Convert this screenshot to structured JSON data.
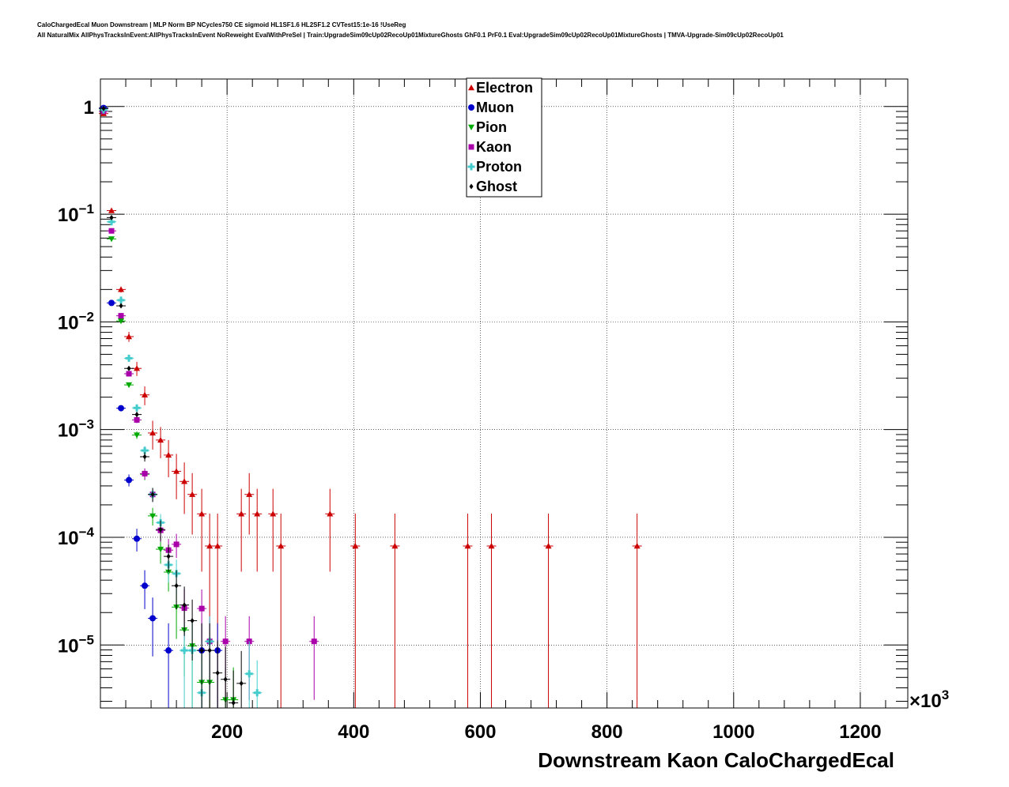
{
  "header": {
    "line1": "CaloChargedEcal Muon Downstream | MLP Norm BP NCycles750 CE sigmoid HL1SF1.6 HL2SF1.2 CVTest15:1e-16 !UseReg",
    "line2": "All NaturalMix AllPhysTracksInEvent:AllPhysTracksInEvent NoReweight EvalWithPreSel | Train:UpgradeSim09cUp02RecoUp01MixtureGhosts GhF0.1 PrF0.1 Eval:UpgradeSim09cUp02RecoUp01MixtureGhosts | TMVA-Upgrade-Sim09cUp02RecoUp01"
  },
  "chart_data": {
    "type": "scatter",
    "title": "",
    "xlabel": "Downstream Kaon CaloChargedEcal",
    "x_multiplier_label": "×10",
    "x_multiplier_exp": "3",
    "ylabel": "",
    "xlim": [
      0,
      1275
    ],
    "ylim": [
      2.6e-06,
      1.8
    ],
    "yscale": "log",
    "grid": true,
    "legend_position": "top-center",
    "x_ticks": [
      {
        "v": 200,
        "label": "200"
      },
      {
        "v": 400,
        "label": "400"
      },
      {
        "v": 600,
        "label": "600"
      },
      {
        "v": 800,
        "label": "800"
      },
      {
        "v": 1000,
        "label": "1000"
      },
      {
        "v": 1200,
        "label": "1200"
      }
    ],
    "y_ticks": [
      {
        "v": 1,
        "base": "1",
        "exp": ""
      },
      {
        "v": 0.1,
        "base": "10",
        "exp": "−1"
      },
      {
        "v": 0.01,
        "base": "10",
        "exp": "−2"
      },
      {
        "v": 0.001,
        "base": "10",
        "exp": "−3"
      },
      {
        "v": 0.0001,
        "base": "10",
        "exp": "−4"
      },
      {
        "v": 1e-05,
        "base": "10",
        "exp": "−5"
      }
    ],
    "series": [
      {
        "name": "Electron",
        "color": "#cc0000",
        "marker": "triangle-up",
        "points": [
          [
            5,
            0.86
          ],
          [
            17.5,
            0.108
          ],
          [
            32.5,
            0.02
          ],
          [
            45,
            0.0073
          ],
          [
            57.5,
            0.0037
          ],
          [
            70,
            0.0021
          ],
          [
            82.5,
            0.00093
          ],
          [
            95,
            0.0008
          ],
          [
            107.5,
            0.00058
          ],
          [
            120,
            0.00041
          ],
          [
            132.5,
            0.00033
          ],
          [
            145,
            0.00025
          ],
          [
            160,
            0.000165
          ],
          [
            172.5,
            8.3e-05
          ],
          [
            185,
            8.3e-05
          ],
          [
            222.5,
            0.000165
          ],
          [
            235,
            0.00025
          ],
          [
            247.5,
            0.000165
          ],
          [
            272.5,
            0.000165
          ],
          [
            285,
            8.3e-05
          ],
          [
            362.5,
            0.000165
          ],
          [
            402.5,
            8.3e-05
          ],
          [
            465,
            8.3e-05
          ],
          [
            580,
            8.3e-05
          ],
          [
            617.5,
            8.3e-05
          ],
          [
            707.5,
            8.3e-05
          ],
          [
            847.5,
            8.3e-05
          ]
        ]
      },
      {
        "name": "Muon",
        "color": "#0000cc",
        "marker": "circle",
        "points": [
          [
            5,
            0.97
          ],
          [
            17.5,
            0.015
          ],
          [
            32.5,
            0.00158
          ],
          [
            45,
            0.00034
          ],
          [
            57.5,
            9.7e-05
          ],
          [
            70,
            3.55e-05
          ],
          [
            82.5,
            1.77e-05
          ],
          [
            107.5,
            8.9e-06
          ],
          [
            160,
            8.9e-06
          ],
          [
            185,
            8.9e-06
          ]
        ]
      },
      {
        "name": "Pion",
        "color": "#00aa00",
        "marker": "triangle-down",
        "points": [
          [
            5,
            0.9
          ],
          [
            17.5,
            0.059
          ],
          [
            32.5,
            0.0102
          ],
          [
            45,
            0.0026
          ],
          [
            57.5,
            0.00089
          ],
          [
            70,
            0.000385
          ],
          [
            82.5,
            0.000158
          ],
          [
            95,
            7.75e-05
          ],
          [
            107.5,
            4.75e-05
          ],
          [
            120,
            2.25e-05
          ],
          [
            132.5,
            1.38e-05
          ],
          [
            145,
            9.8e-06
          ],
          [
            160,
            4.5e-06
          ],
          [
            172.5,
            4.5e-06
          ],
          [
            197.5,
            3.1e-06
          ],
          [
            210,
            3.1e-06
          ]
        ]
      },
      {
        "name": "Kaon",
        "color": "#aa00aa",
        "marker": "square",
        "points": [
          [
            5,
            0.9
          ],
          [
            17.5,
            0.07
          ],
          [
            32.5,
            0.0114
          ],
          [
            45,
            0.0033
          ],
          [
            57.5,
            0.00123
          ],
          [
            70,
            0.00039
          ],
          [
            82.5,
            0.00025
          ],
          [
            95,
            0.000116
          ],
          [
            107.5,
            7.6e-05
          ],
          [
            120,
            8.6e-05
          ],
          [
            132.5,
            2.2e-05
          ],
          [
            160,
            2.18e-05
          ],
          [
            172.5,
            1.08e-05
          ],
          [
            197.5,
            1.08e-05
          ],
          [
            235,
            1.08e-05
          ],
          [
            337.5,
            1.08e-05
          ]
        ]
      },
      {
        "name": "Proton",
        "color": "#44cccc",
        "marker": "cross",
        "points": [
          [
            5,
            0.93
          ],
          [
            17.5,
            0.085
          ],
          [
            32.5,
            0.0159
          ],
          [
            45,
            0.0046
          ],
          [
            57.5,
            0.00159
          ],
          [
            70,
            0.00064
          ],
          [
            82.5,
            0.00025
          ],
          [
            95,
            0.000137
          ],
          [
            107.5,
            5.55e-05
          ],
          [
            120,
            4.6e-05
          ],
          [
            132.5,
            8.9e-06
          ],
          [
            145,
            8.9e-06
          ],
          [
            160,
            3.6e-06
          ],
          [
            172.5,
            1.08e-05
          ],
          [
            235,
            5.4e-06
          ],
          [
            247.5,
            3.6e-06
          ]
        ]
      },
      {
        "name": "Ghost",
        "color": "#000000",
        "marker": "diamond",
        "points": [
          [
            5,
            0.96
          ],
          [
            17.5,
            0.093
          ],
          [
            32.5,
            0.0141
          ],
          [
            45,
            0.0037
          ],
          [
            57.5,
            0.00138
          ],
          [
            70,
            0.00056
          ],
          [
            82.5,
            0.00025
          ],
          [
            95,
            0.000118
          ],
          [
            107.5,
            6.65e-05
          ],
          [
            120,
            3.55e-05
          ],
          [
            132.5,
            2.35e-05
          ],
          [
            145,
            1.68e-05
          ],
          [
            160,
            8.9e-06
          ],
          [
            172.5,
            8.9e-06
          ],
          [
            185,
            5.5e-06
          ],
          [
            197.5,
            4.8e-06
          ],
          [
            210,
            2.9e-06
          ],
          [
            222.5,
            4.4e-06
          ]
        ]
      }
    ]
  }
}
